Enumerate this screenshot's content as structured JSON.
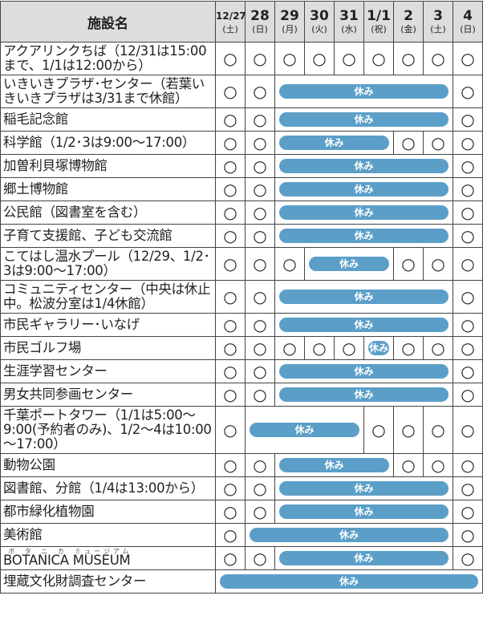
{
  "header": {
    "name_label": "施設名",
    "days": [
      {
        "date": "12/27",
        "dow": "(土)"
      },
      {
        "date": "28",
        "dow": "(日)"
      },
      {
        "date": "29",
        "dow": "(月)"
      },
      {
        "date": "30",
        "dow": "(火)"
      },
      {
        "date": "31",
        "dow": "(水)"
      },
      {
        "date": "1/1",
        "dow": "(祝)"
      },
      {
        "date": "2",
        "dow": "(金)"
      },
      {
        "date": "3",
        "dow": "(土)"
      },
      {
        "date": "4",
        "dow": "(日)"
      }
    ]
  },
  "table": {
    "rows": [
      {
        "name": "アクアリンクちば（12/31は15:00まで、1/1は12:00から）",
        "cells": [
          "○",
          "○",
          "○",
          "○",
          "○",
          "○",
          "○",
          "○",
          "○"
        ]
      },
      {
        "name": "いきいきプラザ･センター（若葉いきいきプラザは3/31まで休館）",
        "cells": [
          "○",
          "○",
          "休み",
          "○"
        ]
      },
      {
        "name": "稲毛記念館",
        "cells": [
          "○",
          "○",
          "休み",
          "○"
        ]
      },
      {
        "name": "科学館（1/2･3は9:00～17:00）",
        "cells": [
          "○",
          "○",
          "休み",
          "○",
          "○",
          "○"
        ]
      },
      {
        "name": "加曽利貝塚博物館",
        "cells": [
          "○",
          "○",
          "休み",
          "○"
        ]
      },
      {
        "name": "郷土博物館",
        "cells": [
          "○",
          "○",
          "休み",
          "○"
        ]
      },
      {
        "name": "公民館（図書室を含む）",
        "cells": [
          "○",
          "○",
          "休み",
          "○"
        ]
      },
      {
        "name": "子育て支援館、子ども交流館",
        "cells": [
          "○",
          "○",
          "休み",
          "○"
        ]
      },
      {
        "name": "こてはし温水プール（12/29、1/2･3は9:00～17:00）",
        "cells": [
          "○",
          "○",
          "○",
          "休み",
          "○",
          "○",
          "○"
        ]
      },
      {
        "name": "コミュニティセンター（中央は休止中。松波分室は1/4休館）",
        "cells": [
          "○",
          "○",
          "休み",
          "○"
        ]
      },
      {
        "name": "市民ギャラリー･いなげ",
        "cells": [
          "○",
          "○",
          "休み",
          "○"
        ]
      },
      {
        "name": "市民ゴルフ場",
        "cells": [
          "○",
          "○",
          "○",
          "○",
          "○",
          "休み",
          "○",
          "○",
          "○"
        ]
      },
      {
        "name": "生涯学習センター",
        "cells": [
          "○",
          "○",
          "休み",
          "○"
        ]
      },
      {
        "name": "男女共同参画センター",
        "cells": [
          "○",
          "○",
          "休み",
          "○"
        ]
      },
      {
        "name": "千葉ポートタワー（1/1は5:00～9:00(予約者のみ)、1/2～4は10:00～17:00）",
        "cells": [
          "○",
          "休み",
          "○",
          "○",
          "○",
          "○"
        ]
      },
      {
        "name": "動物公園",
        "cells": [
          "○",
          "○",
          "休み",
          "○",
          "○",
          "○"
        ]
      },
      {
        "name": "図書館、分館（1/4は13:00から）",
        "cells": [
          "○",
          "○",
          "休み",
          "○"
        ]
      },
      {
        "name": "都市緑化植物園",
        "cells": [
          "○",
          "○",
          "休み",
          "○"
        ]
      },
      {
        "name": "美術館",
        "cells": [
          "○",
          "休み",
          "○"
        ]
      },
      {
        "name": [
          {
            "text": "BOTANICA",
            "ruby": "ボタニカ"
          },
          {
            "text": "MUSEUM",
            "ruby": "ミュージアム"
          }
        ],
        "cells": [
          "○",
          "○",
          "休み",
          "○"
        ]
      },
      {
        "name": "埋蔵文化財調査センター",
        "cells": [
          "休み"
        ]
      }
    ]
  }
}
